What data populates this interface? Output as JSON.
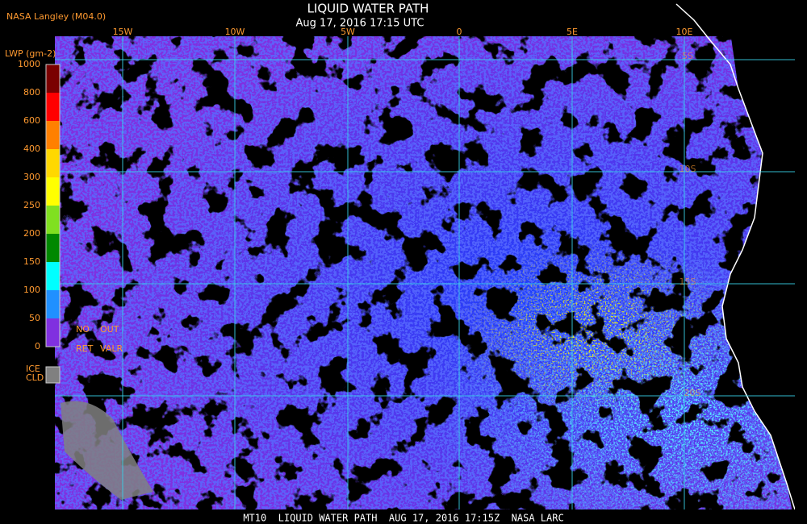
{
  "header": {
    "source": "NASA Langley (M04.0)",
    "title": "LIQUID WATER PATH",
    "subtitle": "Aug 17, 2016 17:15 UTC"
  },
  "map": {
    "longitude_labels": [
      "15W",
      "10W",
      "5W",
      "0",
      "5E",
      "10E"
    ],
    "latitude_labels": [
      "5S",
      "10S",
      "15S",
      "20S"
    ]
  },
  "colorbar": {
    "title": "LWP (gm-2)",
    "labels": [
      "1000",
      "800",
      "600",
      "400",
      "300",
      "250",
      "200",
      "150",
      "100",
      "50",
      "0"
    ],
    "colors": [
      "#7a0000",
      "#ff0000",
      "#ff8000",
      "#ffd800",
      "#ffff00",
      "#80e020",
      "#008800",
      "#00ffff",
      "#2090ff",
      "#0010ff",
      "#8030e0"
    ],
    "no_retrieval": [
      "NO",
      "OUT",
      "RET",
      "VALR"
    ],
    "ice_cloud": [
      "ICE",
      "CLD"
    ],
    "ice_color": "#808080"
  },
  "footer": "MT10  LIQUID WATER PATH  AUG 17, 2016 17:15Z  NASA LARC"
}
